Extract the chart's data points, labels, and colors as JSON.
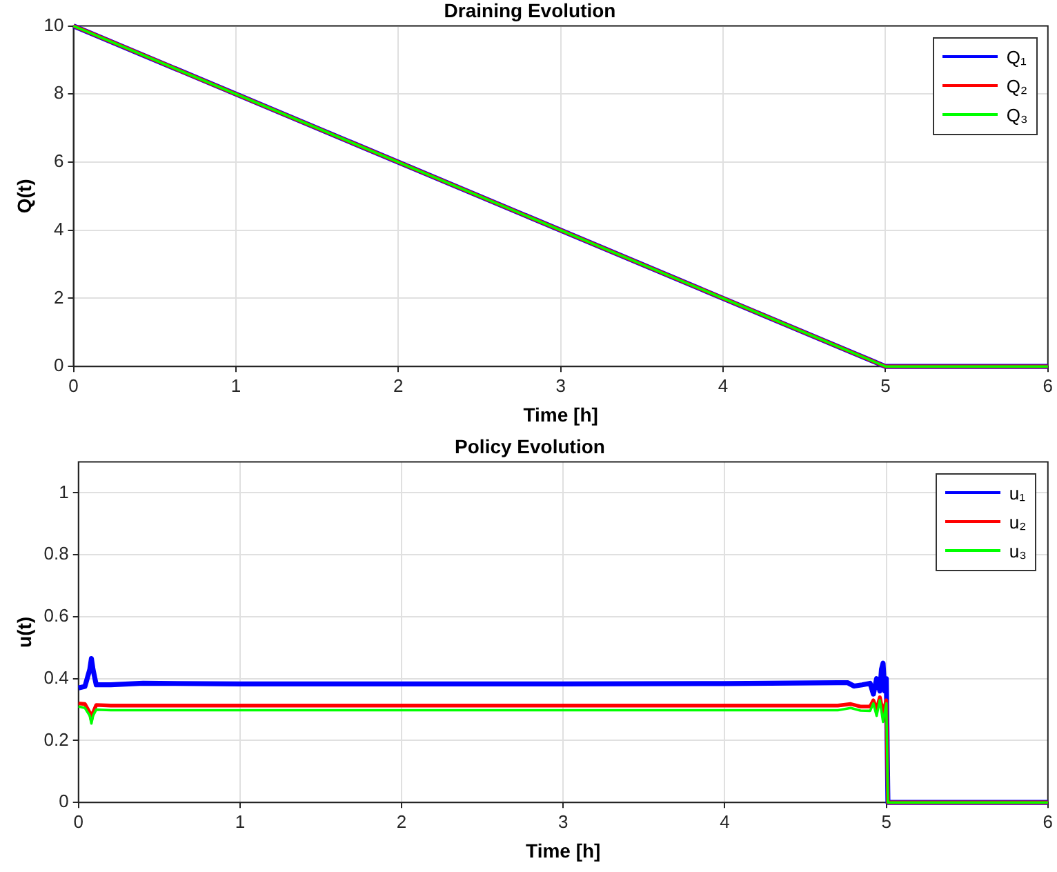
{
  "chart_data": [
    {
      "type": "line",
      "title": "Draining Evolution",
      "xlabel": "Time [h]",
      "ylabel": "Q(t)",
      "xlim": [
        0,
        6
      ],
      "xticks": [
        0,
        1,
        2,
        3,
        4,
        5,
        6
      ],
      "ylim": [
        0,
        10
      ],
      "yticks": [
        0,
        2,
        4,
        6,
        8,
        10
      ],
      "grid": true,
      "legend": "top right",
      "line_style": "solid",
      "series": [
        {
          "name": "Q₁",
          "color": "#0000ff",
          "x": [
            0,
            5,
            6
          ],
          "values": [
            10,
            0,
            0
          ]
        },
        {
          "name": "Q₂",
          "color": "#ff0000",
          "x": [
            0,
            5,
            6
          ],
          "values": [
            10,
            0,
            0
          ]
        },
        {
          "name": "Q₃",
          "color": "#00ff00",
          "x": [
            0,
            5,
            6
          ],
          "values": [
            10,
            0,
            0
          ]
        }
      ]
    },
    {
      "type": "line",
      "title": "Policy Evolution",
      "xlabel": "Time [h]",
      "ylabel": "u(t)",
      "xlim": [
        0,
        6
      ],
      "xticks": [
        0,
        1,
        2,
        3,
        4,
        5,
        6
      ],
      "ylim": [
        0,
        1.1
      ],
      "yticks": [
        0,
        0.2,
        0.4,
        0.6,
        0.8,
        1
      ],
      "grid": true,
      "legend": "top right",
      "line_style": "solid",
      "series": [
        {
          "name": "u₁",
          "color": "#0000ff",
          "x": [
            0,
            0.04,
            0.07,
            0.08,
            0.09,
            0.11,
            0.2,
            0.4,
            1,
            2,
            3,
            4,
            4.7,
            4.76,
            4.8,
            4.85,
            4.9,
            4.92,
            4.94,
            4.96,
            4.97,
            4.98,
            4.99,
            5.0,
            5.01,
            6
          ],
          "values": [
            0.37,
            0.375,
            0.43,
            0.465,
            0.43,
            0.38,
            0.38,
            0.385,
            0.383,
            0.383,
            0.383,
            0.384,
            0.387,
            0.387,
            0.376,
            0.38,
            0.385,
            0.35,
            0.4,
            0.36,
            0.43,
            0.45,
            0.36,
            0.4,
            0,
            0
          ]
        },
        {
          "name": "u₂",
          "color": "#ff0000",
          "x": [
            0,
            0.04,
            0.07,
            0.08,
            0.09,
            0.11,
            0.2,
            1,
            2,
            3,
            4,
            4.7,
            4.78,
            4.84,
            4.9,
            4.92,
            4.94,
            4.96,
            4.98,
            5.0,
            5.01,
            6
          ],
          "values": [
            0.32,
            0.318,
            0.29,
            0.268,
            0.29,
            0.315,
            0.313,
            0.313,
            0.313,
            0.313,
            0.313,
            0.313,
            0.318,
            0.31,
            0.31,
            0.33,
            0.3,
            0.34,
            0.29,
            0.33,
            0,
            0
          ]
        },
        {
          "name": "u₃",
          "color": "#00ff00",
          "x": [
            0,
            0.04,
            0.07,
            0.08,
            0.09,
            0.11,
            0.2,
            1,
            2,
            3,
            4,
            4.7,
            4.78,
            4.84,
            4.9,
            4.92,
            4.94,
            4.96,
            4.98,
            5.0,
            5.01,
            6
          ],
          "values": [
            0.31,
            0.305,
            0.28,
            0.255,
            0.28,
            0.3,
            0.298,
            0.298,
            0.298,
            0.298,
            0.298,
            0.298,
            0.305,
            0.297,
            0.296,
            0.32,
            0.28,
            0.33,
            0.26,
            0.32,
            0,
            0
          ]
        }
      ]
    }
  ]
}
